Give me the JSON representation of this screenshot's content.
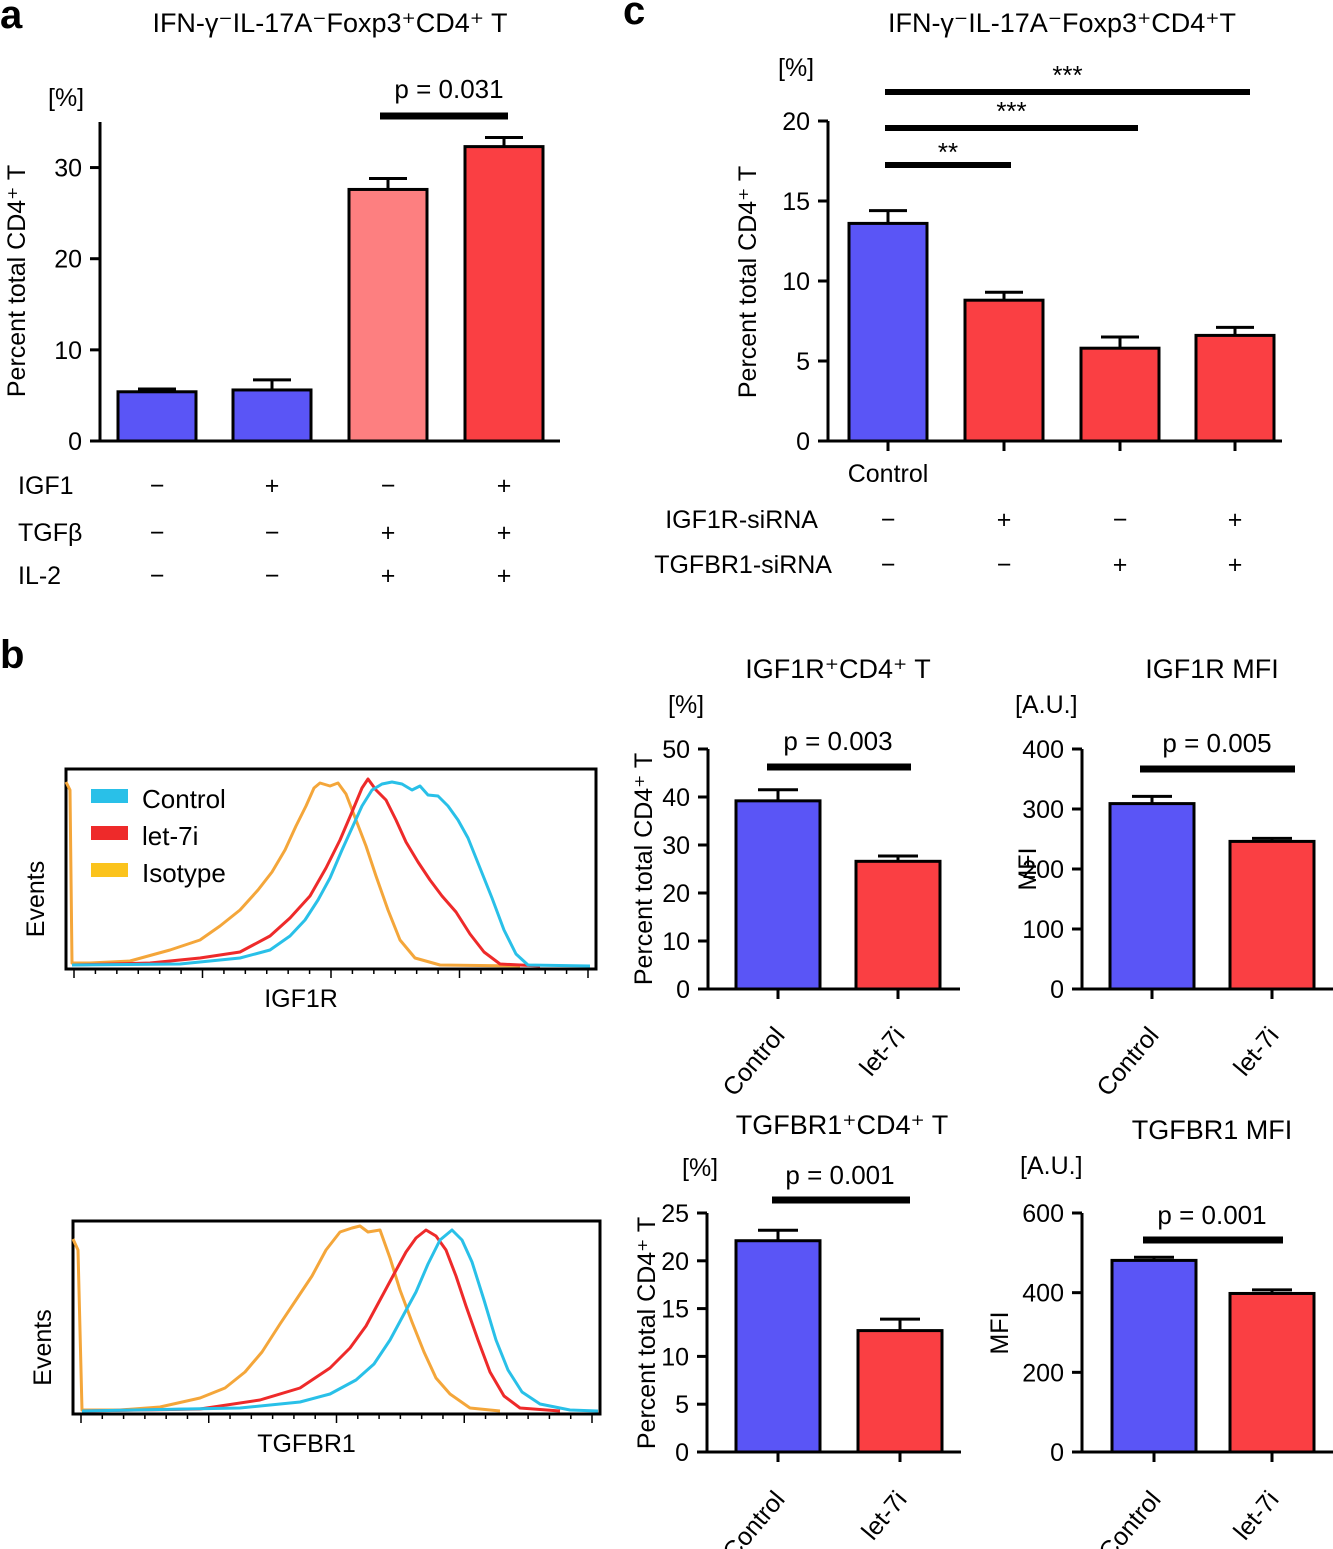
{
  "colors": {
    "blue": "#5a55f6",
    "red": "#fa3f43",
    "pink": "#fd7f80",
    "cyan": "#29c0e8",
    "hist_red": "#ee2a2a",
    "orange": "#f4a63a",
    "legend_yellow": "#fbc31c"
  },
  "panel_a": {
    "letter": "a",
    "chart_data": {
      "type": "bar",
      "title": "IFN-γ⁻IL-17A⁻Foxp3⁺CD4⁺ T",
      "ylabel": "Percent total CD4⁺ T",
      "unit": "[%]",
      "ylim": [
        0,
        35
      ],
      "yticks": [
        "0",
        "10",
        "20",
        "30"
      ],
      "values": [
        5.4,
        5.6,
        27.6,
        32.3
      ],
      "errors": [
        0.3,
        1.1,
        1.2,
        1.0
      ],
      "bar_colors": [
        "blue",
        "blue",
        "pink",
        "red"
      ],
      "conditions": [
        {
          "name": "IGF1",
          "marks": [
            "−",
            "+",
            "−",
            "+"
          ]
        },
        {
          "name": "TGFβ",
          "marks": [
            "−",
            "−",
            "+",
            "+"
          ]
        },
        {
          "name": "IL-2",
          "marks": [
            "−",
            "−",
            "+",
            "+"
          ]
        }
      ],
      "significance": [
        {
          "from": 2,
          "to": 3,
          "label": "p = 0.031"
        }
      ]
    }
  },
  "panel_c": {
    "letter": "c",
    "chart_data": {
      "type": "bar",
      "title": "IFN-γ⁻IL-17A⁻Foxp3⁺CD4⁺T",
      "ylabel": "Percent total CD4⁺ T",
      "unit": "[%]",
      "ylim": [
        0,
        20
      ],
      "yticks": [
        "0",
        "5",
        "10",
        "15",
        "20"
      ],
      "values": [
        13.6,
        8.8,
        5.8,
        6.6
      ],
      "errors": [
        0.8,
        0.5,
        0.7,
        0.5
      ],
      "bar_colors": [
        "blue",
        "red",
        "red",
        "red"
      ],
      "first_label": "Control",
      "conditions": [
        {
          "name": "IGF1R-siRNA",
          "marks": [
            "−",
            "+",
            "−",
            "+"
          ]
        },
        {
          "name": "TGFBR1-siRNA",
          "marks": [
            "−",
            "−",
            "+",
            "+"
          ]
        }
      ],
      "significance": [
        {
          "from": 0,
          "to": 3,
          "label": "***"
        },
        {
          "from": 0,
          "to": 2,
          "label": "***"
        },
        {
          "from": 0,
          "to": 1,
          "label": "**"
        }
      ]
    }
  },
  "panel_b": {
    "letter": "b",
    "legend": [
      {
        "label": "Control",
        "color": "cyan"
      },
      {
        "label": "let-7i",
        "color": "hist_red"
      },
      {
        "label": "Isotype",
        "color": "legend_yellow"
      }
    ],
    "histograms": [
      {
        "xlabel": "IGF1R",
        "ylabel": "Events"
      },
      {
        "xlabel": "TGFBR1",
        "ylabel": "Events"
      }
    ],
    "bar_charts": [
      {
        "type": "bar",
        "title": "IGF1R⁺CD4⁺ T",
        "unit": "[%]",
        "ylabel": "Percent total CD4⁺ T",
        "ylim": [
          0,
          50
        ],
        "yticks": [
          "0",
          "10",
          "20",
          "30",
          "40",
          "50"
        ],
        "categories": [
          "Control",
          "let-7i"
        ],
        "values": [
          39.2,
          26.6
        ],
        "errors": [
          2.3,
          1.1
        ],
        "bar_colors": [
          "blue",
          "red"
        ],
        "pvalue": "p = 0.003"
      },
      {
        "type": "bar",
        "title": "IGF1R MFI",
        "unit": "[A.U.]",
        "ylabel": "MFI",
        "ylim": [
          0,
          400
        ],
        "yticks": [
          "0",
          "100",
          "200",
          "300",
          "400"
        ],
        "categories": [
          "Control",
          "let-7i"
        ],
        "values": [
          309,
          246
        ],
        "errors": [
          12,
          5
        ],
        "bar_colors": [
          "blue",
          "red"
        ],
        "pvalue": "p = 0.005"
      },
      {
        "type": "bar",
        "title": "TGFBR1⁺CD4⁺ T",
        "unit": "[%]",
        "ylabel": "Percent total CD4⁺ T",
        "ylim": [
          0,
          25
        ],
        "yticks": [
          "0",
          "5",
          "10",
          "15",
          "20",
          "25"
        ],
        "categories": [
          "Control",
          "let-7i"
        ],
        "values": [
          22.1,
          12.7
        ],
        "errors": [
          1.1,
          1.2
        ],
        "bar_colors": [
          "blue",
          "red"
        ],
        "pvalue": "p = 0.001"
      },
      {
        "type": "bar",
        "title": "TGFBR1 MFI",
        "unit": "[A.U.]",
        "ylabel": "MFI",
        "ylim": [
          0,
          600
        ],
        "yticks": [
          "0",
          "200",
          "400",
          "600"
        ],
        "categories": [
          "Control",
          "let-7i"
        ],
        "values": [
          481,
          398
        ],
        "errors": [
          8,
          9
        ],
        "bar_colors": [
          "blue",
          "red"
        ],
        "pvalue": "p = 0.001"
      }
    ]
  }
}
